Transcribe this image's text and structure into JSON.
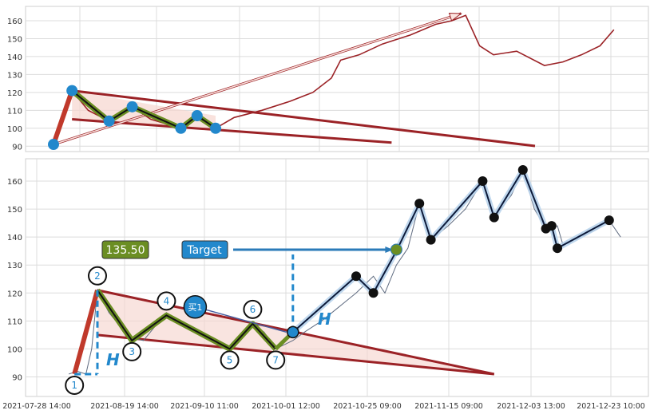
{
  "chart_data": [
    {
      "type": "line",
      "panel": "overview",
      "ylim": [
        87,
        168
      ],
      "yticks": [
        90,
        100,
        110,
        120,
        130,
        140,
        150,
        160
      ],
      "grid": true,
      "colors": {
        "price": "#9b2226",
        "points": "#2288cc",
        "wedge_fill": "#f6d5cf"
      },
      "price_series": [
        [
          0,
          91
        ],
        [
          8,
          121
        ],
        [
          15,
          110
        ],
        [
          24,
          104
        ],
        [
          34,
          112
        ],
        [
          42,
          105
        ],
        [
          55,
          100
        ],
        [
          62,
          107
        ],
        [
          70,
          100
        ],
        [
          78,
          106
        ],
        [
          90,
          110
        ],
        [
          102,
          115
        ],
        [
          112,
          120
        ],
        [
          120,
          128
        ],
        [
          124,
          138
        ],
        [
          132,
          141
        ],
        [
          142,
          147
        ],
        [
          154,
          152
        ],
        [
          165,
          158
        ],
        [
          172,
          160
        ],
        [
          178,
          163
        ],
        [
          184,
          146
        ],
        [
          190,
          141
        ],
        [
          200,
          143
        ],
        [
          212,
          135
        ],
        [
          220,
          137
        ],
        [
          228,
          141
        ],
        [
          236,
          146
        ],
        [
          242,
          155
        ]
      ],
      "pattern_points": [
        [
          0,
          91
        ],
        [
          8,
          121
        ],
        [
          24,
          104
        ],
        [
          34,
          112
        ],
        [
          55,
          100
        ],
        [
          62,
          107
        ],
        [
          70,
          100
        ]
      ],
      "wedge_upper": [
        [
          8,
          121
        ],
        [
          70,
          107
        ]
      ],
      "wedge_lower": [
        [
          8,
          105
        ],
        [
          70,
          99
        ],
        [
          146,
          92
        ]
      ],
      "arrow": {
        "from": [
          0,
          91
        ],
        "to": [
          176,
          164
        ]
      }
    },
    {
      "type": "line",
      "panel": "detail",
      "ylim": [
        83,
        168
      ],
      "yticks": [
        90,
        100,
        110,
        120,
        130,
        140,
        150,
        160
      ],
      "x_tick_labels": [
        "2021-07-28 14:00",
        "2021-08-19 14:00",
        "2021-09-10 11:00",
        "2021-10-01 12:00",
        "2021-10-25 09:00",
        "2021-11-15 09:00",
        "2021-12-03 13:00",
        "2021-12-23 10:00"
      ],
      "grid": true,
      "colors": {
        "price": "#5f6b80",
        "pattern": "#1a1a1a",
        "highlight": "#6b8e23",
        "wedge_edge": "#9b2226",
        "target": "#2b7bb9"
      },
      "price_series": [
        [
          0,
          91
        ],
        [
          3,
          92
        ],
        [
          6,
          91
        ],
        [
          8,
          100
        ],
        [
          10,
          121
        ],
        [
          14,
          113
        ],
        [
          18,
          108
        ],
        [
          22,
          104
        ],
        [
          26,
          103
        ],
        [
          30,
          108
        ],
        [
          34,
          113
        ],
        [
          38,
          110
        ],
        [
          44,
          106
        ],
        [
          50,
          103
        ],
        [
          56,
          100
        ],
        [
          60,
          104
        ],
        [
          64,
          109
        ],
        [
          68,
          106
        ],
        [
          72,
          100
        ],
        [
          78,
          103
        ],
        [
          82,
          106
        ],
        [
          88,
          110
        ],
        [
          94,
          115
        ],
        [
          100,
          120
        ],
        [
          106,
          126
        ],
        [
          110,
          120
        ],
        [
          114,
          130
        ],
        [
          118,
          136
        ],
        [
          122,
          152
        ],
        [
          126,
          139
        ],
        [
          132,
          144
        ],
        [
          138,
          150
        ],
        [
          144,
          160
        ],
        [
          148,
          147
        ],
        [
          154,
          155
        ],
        [
          158,
          164
        ],
        [
          162,
          150
        ],
        [
          166,
          143
        ],
        [
          170,
          144
        ],
        [
          172,
          137
        ],
        [
          178,
          140
        ],
        [
          184,
          143
        ],
        [
          188,
          146
        ],
        [
          192,
          140
        ]
      ],
      "pattern_points": [
        {
          "label": "1",
          "x": 2,
          "y": 91
        },
        {
          "label": "2",
          "x": 10,
          "y": 121
        },
        {
          "label": "3",
          "x": 22,
          "y": 103
        },
        {
          "label": "4",
          "x": 34,
          "y": 112
        },
        {
          "label": "5",
          "x": 56,
          "y": 100
        },
        {
          "label": "6",
          "x": 64,
          "y": 109
        },
        {
          "label": "7",
          "x": 72,
          "y": 100
        }
      ],
      "trend_points": [
        [
          78,
          106
        ],
        [
          100,
          126
        ],
        [
          106,
          120
        ],
        [
          114,
          135
        ],
        [
          122,
          152
        ],
        [
          126,
          139
        ],
        [
          144,
          160
        ],
        [
          148,
          147
        ],
        [
          158,
          164
        ],
        [
          166,
          143
        ],
        [
          168,
          144
        ],
        [
          170,
          136
        ],
        [
          188,
          146
        ]
      ],
      "wedge_upper": [
        [
          10,
          121
        ],
        [
          72,
          108
        ]
      ],
      "wedge_lower": [
        [
          10,
          105
        ],
        [
          72,
          98
        ],
        [
          148,
          91
        ]
      ],
      "buy_label": "买1",
      "buy_point": [
        78,
        106
      ],
      "buy_marker": [
        44,
        115
      ],
      "target_label": "Target",
      "target_value": "135.50",
      "target_y": 135.5,
      "target_x": 114,
      "h_label_left": "H",
      "h_label_right": "H"
    }
  ]
}
